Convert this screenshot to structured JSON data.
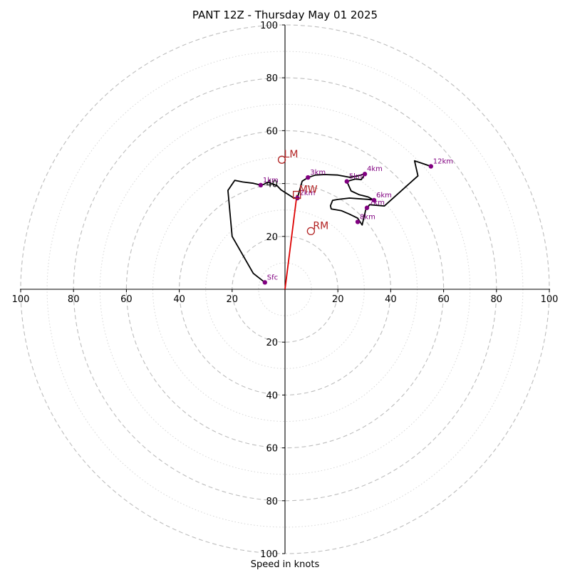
{
  "chart_data": {
    "type": "hodograph",
    "title": "PANT 12Z - Thursday May 01 2025",
    "xlabel": "Speed in knots",
    "xlim": [
      -100,
      100
    ],
    "ylim": [
      -100,
      100
    ],
    "x_tick_labels": [
      "100",
      "80",
      "60",
      "40",
      "20",
      "20",
      "40",
      "60",
      "80",
      "100"
    ],
    "y_tick_labels": [
      "100",
      "80",
      "60",
      "40",
      "20",
      "20",
      "40",
      "60",
      "80",
      "100"
    ],
    "ring_major_speeds": [
      20,
      40,
      60,
      80,
      100
    ],
    "ring_minor_speeds": [
      10,
      30,
      50,
      70,
      90
    ],
    "grid": true,
    "colors": {
      "profile": "#000000",
      "markers": "#800080",
      "motion": "#b22222",
      "shear_vector": "#dd0000",
      "grid": "#bdbdbd"
    },
    "profile": [
      [
        -7.6,
        2.6
      ],
      [
        -12,
        6
      ],
      [
        -20,
        20
      ],
      [
        -21.6,
        37.4
      ],
      [
        -19,
        41.2
      ],
      [
        -16,
        40.6
      ],
      [
        -12,
        40.1
      ],
      [
        -9.2,
        39.4
      ],
      [
        -8,
        39.7
      ],
      [
        -6.5,
        40.5
      ],
      [
        -3,
        39.2
      ],
      [
        -1.5,
        37.6
      ],
      [
        3.2,
        34.6
      ],
      [
        4.7,
        34.5
      ],
      [
        6.5,
        40.9
      ],
      [
        8.7,
        42.3
      ],
      [
        11.5,
        43.2
      ],
      [
        15,
        43.4
      ],
      [
        20,
        43.2
      ],
      [
        24.4,
        42.4
      ],
      [
        27.1,
        42.8
      ],
      [
        30.2,
        43.6
      ],
      [
        28.9,
        41.5
      ],
      [
        26.6,
        41.7
      ],
      [
        23.4,
        40.8
      ],
      [
        25,
        37.2
      ],
      [
        28,
        35.8
      ],
      [
        31.5,
        34.9
      ],
      [
        33.7,
        33.7
      ],
      [
        32.9,
        33.9
      ],
      [
        24.4,
        34.5
      ],
      [
        20,
        34
      ],
      [
        18,
        33.6
      ],
      [
        17.2,
        31.6
      ],
      [
        17.5,
        30.4
      ],
      [
        21.4,
        29.7
      ],
      [
        24.4,
        28.4
      ],
      [
        27.5,
        26.9
      ],
      [
        29.2,
        24.3
      ],
      [
        30.5,
        30
      ],
      [
        32,
        32
      ],
      [
        37.6,
        31.5
      ],
      [
        50.3,
        42.9
      ],
      [
        49,
        48.6
      ],
      [
        52,
        47.6
      ],
      [
        55.2,
        46.5
      ]
    ],
    "height_markers": [
      {
        "label": "Sfc",
        "x": -7.6,
        "y": 2.6
      },
      {
        "label": "1km",
        "x": -9.2,
        "y": 39.4
      },
      {
        "label": "2km",
        "x": 4.7,
        "y": 34.5
      },
      {
        "label": "3km",
        "x": 8.7,
        "y": 42.3
      },
      {
        "label": "4km",
        "x": 30.2,
        "y": 43.6
      },
      {
        "label": "5km",
        "x": 23.4,
        "y": 40.8
      },
      {
        "label": "6km",
        "x": 33.7,
        "y": 33.7
      },
      {
        "label": "7km",
        "x": 31,
        "y": 30.8
      },
      {
        "label": "8km",
        "x": 27.5,
        "y": 25.5
      },
      {
        "label": "12km",
        "x": 55.2,
        "y": 46.5
      }
    ],
    "storm_motion": [
      {
        "label": "LM",
        "x": -1.2,
        "y": 49,
        "marker": "circle"
      },
      {
        "label": "MW",
        "x": 4.5,
        "y": 35.7,
        "marker": "square"
      },
      {
        "label": "RM",
        "x": 9.8,
        "y": 22,
        "marker": "circle"
      }
    ],
    "shear_vector": {
      "x": [
        0,
        4.5
      ],
      "y": [
        0,
        35.7
      ]
    }
  }
}
